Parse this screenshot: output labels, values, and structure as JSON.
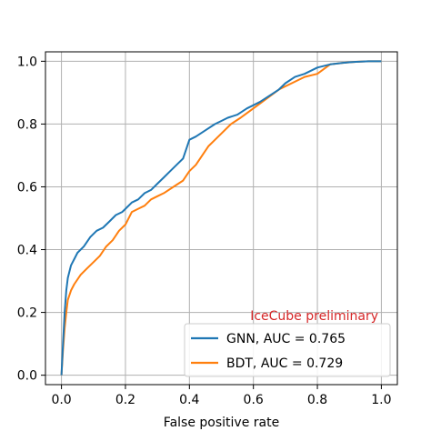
{
  "chart_data": {
    "type": "line",
    "title": "",
    "xlabel": "False positive rate",
    "ylabel": "",
    "xlim": [
      -0.05,
      1.05
    ],
    "ylim": [
      -0.03,
      1.03
    ],
    "x_ticks": [
      0.0,
      0.2,
      0.4,
      0.6,
      0.8,
      1.0
    ],
    "y_ticks": [
      0.0,
      0.2,
      0.4,
      0.6,
      0.8,
      1.0
    ],
    "x_tick_labels": [
      "0.0",
      "0.2",
      "0.4",
      "0.6",
      "0.8",
      "1.0"
    ],
    "y_tick_labels": [
      "0.0",
      "0.2",
      "0.4",
      "0.6",
      "0.8",
      "1.0"
    ],
    "grid": true,
    "legend_position": "lower-right",
    "annotation": {
      "text": "IceCube preliminary",
      "color": "#d62728"
    },
    "series": [
      {
        "name": "GNN, AUC = 0.765",
        "color": "#1f77b4",
        "x": [
          0.0,
          0.005,
          0.01,
          0.015,
          0.02,
          0.03,
          0.04,
          0.05,
          0.07,
          0.09,
          0.11,
          0.13,
          0.15,
          0.17,
          0.19,
          0.2,
          0.22,
          0.24,
          0.26,
          0.28,
          0.3,
          0.32,
          0.34,
          0.36,
          0.38,
          0.4,
          0.42,
          0.45,
          0.48,
          0.5,
          0.52,
          0.55,
          0.58,
          0.6,
          0.62,
          0.65,
          0.68,
          0.7,
          0.73,
          0.76,
          0.8,
          0.84,
          0.88,
          0.92,
          0.96,
          1.0
        ],
        "y": [
          0.0,
          0.1,
          0.2,
          0.27,
          0.31,
          0.35,
          0.37,
          0.39,
          0.41,
          0.44,
          0.46,
          0.47,
          0.49,
          0.51,
          0.52,
          0.53,
          0.55,
          0.56,
          0.58,
          0.59,
          0.61,
          0.63,
          0.65,
          0.67,
          0.69,
          0.75,
          0.76,
          0.78,
          0.8,
          0.81,
          0.82,
          0.83,
          0.85,
          0.86,
          0.87,
          0.89,
          0.91,
          0.93,
          0.95,
          0.96,
          0.98,
          0.99,
          0.995,
          0.998,
          1.0,
          1.0
        ]
      },
      {
        "name": "BDT, AUC = 0.729",
        "color": "#ff7f0e",
        "x": [
          0.0,
          0.005,
          0.01,
          0.015,
          0.02,
          0.03,
          0.04,
          0.06,
          0.08,
          0.1,
          0.12,
          0.14,
          0.16,
          0.18,
          0.2,
          0.22,
          0.24,
          0.26,
          0.28,
          0.3,
          0.32,
          0.35,
          0.38,
          0.4,
          0.42,
          0.44,
          0.46,
          0.48,
          0.5,
          0.53,
          0.56,
          0.6,
          0.64,
          0.68,
          0.72,
          0.76,
          0.8,
          0.84,
          0.88,
          0.92,
          0.96,
          1.0
        ],
        "y": [
          0.0,
          0.08,
          0.15,
          0.2,
          0.24,
          0.27,
          0.29,
          0.32,
          0.34,
          0.36,
          0.38,
          0.41,
          0.43,
          0.46,
          0.48,
          0.52,
          0.53,
          0.54,
          0.56,
          0.57,
          0.58,
          0.6,
          0.62,
          0.65,
          0.67,
          0.7,
          0.73,
          0.75,
          0.77,
          0.8,
          0.82,
          0.85,
          0.88,
          0.91,
          0.93,
          0.95,
          0.96,
          0.99,
          0.995,
          0.998,
          1.0,
          1.0
        ]
      }
    ]
  }
}
